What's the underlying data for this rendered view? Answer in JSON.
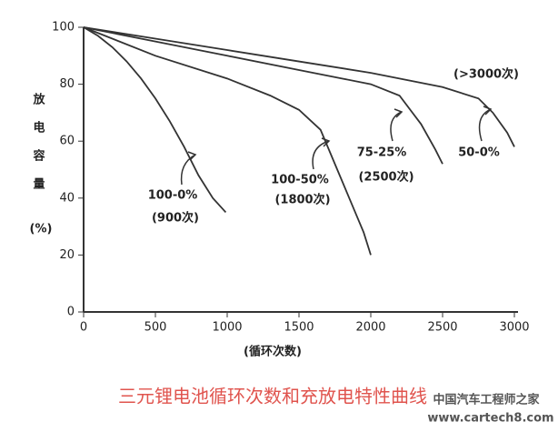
{
  "chart_data": {
    "type": "line",
    "y_label_chars": [
      "放",
      "电",
      "容",
      "量"
    ],
    "y_label_unit": "(%)",
    "x_label": "(循环次数)",
    "caption": "三元锂电池循环次数和充放电特性曲线",
    "watermark": [
      "中国汽车工程师之家",
      "www.cartech8.com"
    ],
    "xlim": [
      0,
      3000
    ],
    "xticks": [
      0,
      500,
      1000,
      1500,
      2000,
      2500,
      3000
    ],
    "ylim": [
      0,
      100
    ],
    "yticks": [
      0,
      20,
      40,
      60,
      80,
      100
    ],
    "color": "#333333",
    "series": [
      {
        "name": "100-0%",
        "cycles": "(900次)",
        "x": [
          0,
          100,
          200,
          300,
          400,
          500,
          600,
          700,
          800,
          900,
          990
        ],
        "values": [
          100,
          97,
          93,
          88,
          82,
          75,
          67,
          58,
          48,
          40,
          35
        ]
      },
      {
        "name": "100-50%",
        "cycles": "(1800次)",
        "x": [
          0,
          500,
          1000,
          1300,
          1500,
          1650,
          1750,
          1850,
          1950,
          2000
        ],
        "values": [
          100,
          90,
          82,
          76,
          71,
          64,
          52,
          40,
          28,
          20
        ]
      },
      {
        "name": "75-25%",
        "cycles": "(2500次)",
        "x": [
          0,
          500,
          1000,
          1500,
          1800,
          2000,
          2200,
          2350,
          2450,
          2500
        ],
        "values": [
          100,
          95,
          90,
          85,
          82,
          80,
          76,
          66,
          57,
          52
        ]
      },
      {
        "name": "50-0%",
        "cycles": "(>3000次)",
        "x": [
          0,
          500,
          1000,
          1500,
          2000,
          2500,
          2750,
          2850,
          2950,
          3000
        ],
        "values": [
          100,
          96,
          92,
          88,
          84,
          79,
          75,
          70,
          63,
          58
        ]
      }
    ]
  }
}
